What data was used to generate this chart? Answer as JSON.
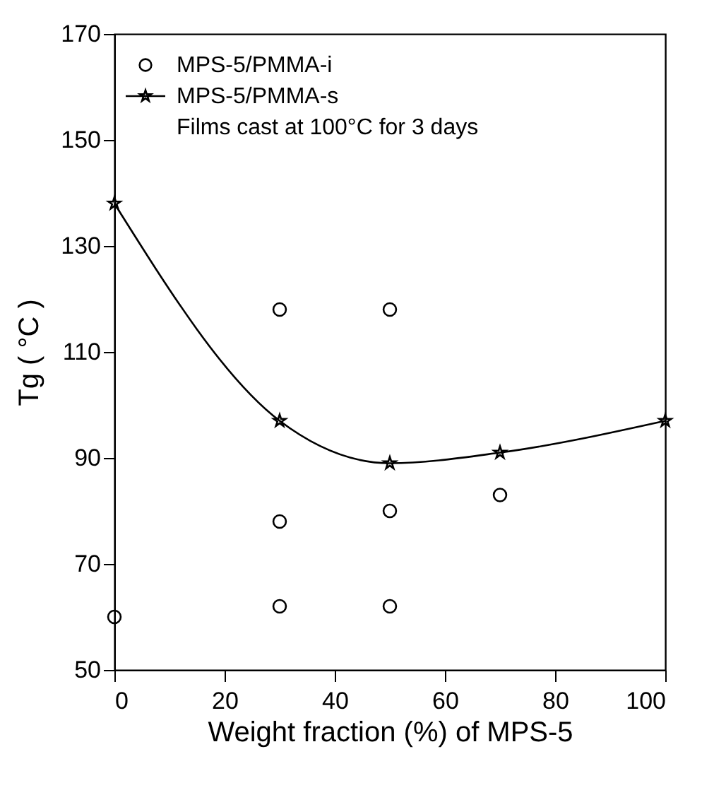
{
  "chart_data": {
    "type": "scatter",
    "xlabel": "Weight fraction (%) of MPS-5",
    "ylabel": "Tg ( °C )",
    "xlim": [
      0,
      100
    ],
    "xticks": [
      0,
      20,
      40,
      60,
      80,
      100
    ],
    "ylim": [
      50,
      170
    ],
    "yticks": [
      50,
      70,
      90,
      110,
      130,
      150,
      170
    ],
    "grid": false,
    "legend": "top left",
    "annotations": [
      "Films cast at 100°C for 3 days"
    ],
    "series": [
      {
        "name": "MPS-5/PMMA-i",
        "marker": "circle",
        "color": "#000000",
        "x": [
          0,
          30,
          30,
          30,
          50,
          50,
          50,
          70
        ],
        "values": [
          60,
          118,
          78,
          62,
          118,
          80,
          62,
          83
        ]
      },
      {
        "name": "MPS-5/PMMA-s",
        "type": "line",
        "marker": "star",
        "line_style": "solid",
        "color": "#000000",
        "x": [
          0,
          30,
          50,
          70,
          100
        ],
        "values": [
          138,
          97,
          89,
          91,
          97
        ]
      }
    ]
  }
}
